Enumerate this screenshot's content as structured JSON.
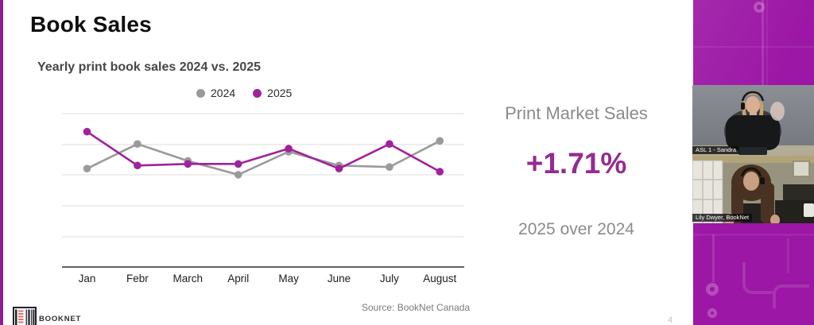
{
  "slide": {
    "title": "Book Sales",
    "source": "Source: BookNet Canada",
    "page_number": "4",
    "logo": {
      "text": "BOOKNET"
    },
    "callout": {
      "heading": "Print Market Sales",
      "value": "+1.71%",
      "caption": "2025 over 2024"
    }
  },
  "chart_data": {
    "type": "line",
    "title": "Yearly print book sales 2024 vs. 2025",
    "categories": [
      "Jan",
      "Febr",
      "March",
      "April",
      "May",
      "June",
      "July",
      "August"
    ],
    "series": [
      {
        "name": "2024",
        "color": "#9a9a9a",
        "values": [
          3.2,
          4.0,
          3.45,
          3.0,
          3.75,
          3.3,
          3.25,
          4.1
        ]
      },
      {
        "name": "2025",
        "color": "#a1219c",
        "values": [
          4.4,
          3.3,
          3.35,
          3.35,
          3.85,
          3.2,
          4.0,
          3.1
        ]
      }
    ],
    "xlabel": "",
    "ylabel": "",
    "ylim": [
      0,
      5
    ],
    "y_axis_labels_visible": false,
    "gridlines": "horizontal",
    "legend_position": "top",
    "values_unit": "relative units estimated from unlabeled gridlines"
  },
  "sidebar": {
    "videos": [
      {
        "name_label": "ASL 1 - Sandra"
      },
      {
        "name_label": "Lily Dwyer, BookNet"
      }
    ]
  },
  "colors": {
    "accent_purple": "#942c90",
    "series_2024_gray": "#9a9a9a",
    "series_2025_purple": "#a1219c",
    "sidebar_purple": "#9c17a5",
    "left_stripe_purple": "#8a1f93",
    "callout_gray": "#8b8b8b"
  }
}
